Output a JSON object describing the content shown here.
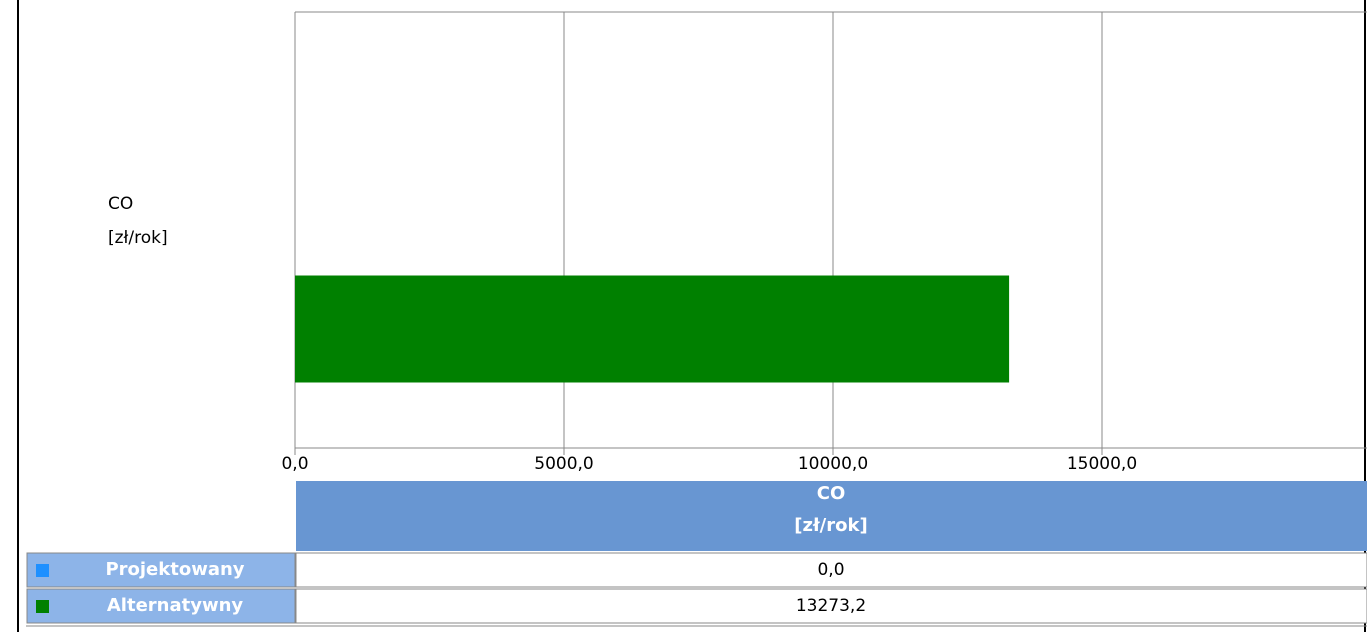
{
  "chart_data": {
    "type": "barh",
    "categories": [
      "CO\n[zł/rok]"
    ],
    "series": [
      {
        "name": "Projektowany",
        "color": "#1e90ff",
        "values": [
          0.0
        ],
        "value_labels": [
          "0,0"
        ]
      },
      {
        "name": "Alternatywny",
        "color": "#008000",
        "values": [
          13273.2
        ],
        "value_labels": [
          "13273,2"
        ]
      }
    ],
    "xlim": [
      0,
      20000
    ],
    "xticks": [
      {
        "value": 0,
        "label": "0,0"
      },
      {
        "value": 5000,
        "label": "5000,0"
      },
      {
        "value": 10000,
        "label": "10000,0"
      },
      {
        "value": 15000,
        "label": "15000,0"
      }
    ],
    "grid": true
  }
}
